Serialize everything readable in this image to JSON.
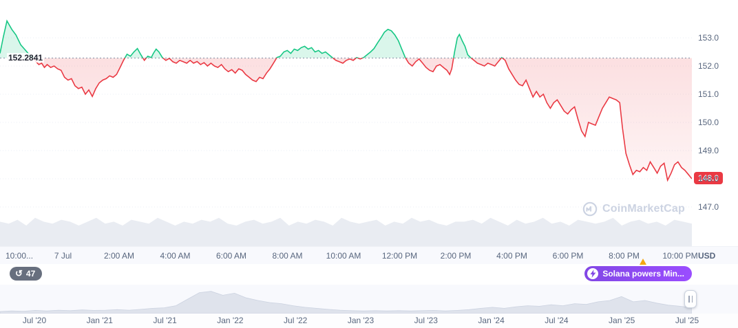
{
  "colors": {
    "green": "#16c784",
    "red": "#ea3943",
    "purple": "#8247e5",
    "axis_text": "#58667e",
    "volume_gray": "#e9ecf2",
    "navigator_fill": "#dfe3ec"
  },
  "chart_data": {
    "type": "line",
    "title": "",
    "ylabel": "USD",
    "y_ticks": [
      "153.0",
      "152.0",
      "151.0",
      "150.0",
      "149.0",
      "148.0",
      "147.0"
    ],
    "ylim": [
      146.8,
      154.2
    ],
    "grid": "horizontal-dotted",
    "legend": "none",
    "baseline_value": 152.2841,
    "baseline_label": "152.2841",
    "last_price_value": 148.0,
    "last_price_label": "148.0",
    "line_color_above": "#16c784",
    "line_color_below": "#ea3943",
    "x_ticks": [
      "10:00...",
      "7 Jul",
      "2:00 AM",
      "4:00 AM",
      "6:00 AM",
      "8:00 AM",
      "10:00 AM",
      "12:00 PM",
      "2:00 PM",
      "4:00 PM",
      "6:00 PM",
      "8:00 PM",
      "10:00 PM"
    ],
    "points": [
      [
        0,
        152.45
      ],
      [
        5,
        153.05
      ],
      [
        10,
        153.6
      ],
      [
        17,
        153.3
      ],
      [
        23,
        153.1
      ],
      [
        30,
        152.75
      ],
      [
        37,
        152.55
      ],
      [
        44,
        152.35
      ],
      [
        48,
        152.3
      ],
      [
        52,
        152.15
      ],
      [
        56,
        152.05
      ],
      [
        60,
        152.1
      ],
      [
        64,
        151.95
      ],
      [
        68,
        152.05
      ],
      [
        73,
        151.95
      ],
      [
        78,
        152.0
      ],
      [
        83,
        151.9
      ],
      [
        88,
        151.85
      ],
      [
        93,
        151.6
      ],
      [
        98,
        151.5
      ],
      [
        103,
        151.55
      ],
      [
        108,
        151.3
      ],
      [
        113,
        151.2
      ],
      [
        118,
        151.25
      ],
      [
        123,
        151.0
      ],
      [
        128,
        151.15
      ],
      [
        133,
        150.92
      ],
      [
        138,
        151.2
      ],
      [
        143,
        151.4
      ],
      [
        148,
        151.5
      ],
      [
        153,
        151.55
      ],
      [
        158,
        151.65
      ],
      [
        163,
        151.6
      ],
      [
        168,
        151.7
      ],
      [
        173,
        151.95
      ],
      [
        178,
        152.2
      ],
      [
        183,
        152.42
      ],
      [
        188,
        152.35
      ],
      [
        193,
        152.5
      ],
      [
        198,
        152.62
      ],
      [
        203,
        152.4
      ],
      [
        208,
        152.2
      ],
      [
        213,
        152.35
      ],
      [
        218,
        152.3
      ],
      [
        221,
        152.45
      ],
      [
        225,
        152.6
      ],
      [
        229,
        152.5
      ],
      [
        234,
        152.3
      ],
      [
        239,
        152.2
      ],
      [
        244,
        152.27
      ],
      [
        249,
        152.15
      ],
      [
        254,
        152.1
      ],
      [
        259,
        152.2
      ],
      [
        264,
        152.15
      ],
      [
        269,
        152.1
      ],
      [
        274,
        152.2
      ],
      [
        279,
        152.1
      ],
      [
        284,
        152.16
      ],
      [
        289,
        152.05
      ],
      [
        294,
        152.12
      ],
      [
        299,
        152.0
      ],
      [
        304,
        152.1
      ],
      [
        309,
        152.0
      ],
      [
        314,
        151.95
      ],
      [
        319,
        152.05
      ],
      [
        324,
        151.9
      ],
      [
        329,
        151.8
      ],
      [
        334,
        151.87
      ],
      [
        339,
        151.75
      ],
      [
        344,
        151.9
      ],
      [
        349,
        151.85
      ],
      [
        354,
        151.7
      ],
      [
        359,
        151.6
      ],
      [
        364,
        151.5
      ],
      [
        369,
        151.45
      ],
      [
        374,
        151.6
      ],
      [
        379,
        151.55
      ],
      [
        384,
        151.75
      ],
      [
        389,
        151.9
      ],
      [
        394,
        152.1
      ],
      [
        399,
        152.3
      ],
      [
        404,
        152.35
      ],
      [
        409,
        152.5
      ],
      [
        414,
        152.55
      ],
      [
        419,
        152.45
      ],
      [
        424,
        152.6
      ],
      [
        429,
        152.55
      ],
      [
        434,
        152.65
      ],
      [
        439,
        152.7
      ],
      [
        444,
        152.6
      ],
      [
        449,
        152.65
      ],
      [
        454,
        152.5
      ],
      [
        459,
        152.55
      ],
      [
        464,
        152.45
      ],
      [
        469,
        152.5
      ],
      [
        474,
        152.4
      ],
      [
        479,
        152.3
      ],
      [
        484,
        152.2
      ],
      [
        489,
        152.15
      ],
      [
        494,
        152.1
      ],
      [
        499,
        152.2
      ],
      [
        504,
        152.25
      ],
      [
        509,
        152.2
      ],
      [
        514,
        152.3
      ],
      [
        519,
        152.25
      ],
      [
        524,
        152.3
      ],
      [
        529,
        152.4
      ],
      [
        534,
        152.5
      ],
      [
        539,
        152.62
      ],
      [
        544,
        152.82
      ],
      [
        549,
        153.0
      ],
      [
        554,
        153.2
      ],
      [
        559,
        153.3
      ],
      [
        564,
        153.25
      ],
      [
        569,
        153.1
      ],
      [
        574,
        152.9
      ],
      [
        579,
        152.6
      ],
      [
        584,
        152.3
      ],
      [
        589,
        152.1
      ],
      [
        594,
        152.0
      ],
      [
        599,
        152.15
      ],
      [
        604,
        152.25
      ],
      [
        609,
        152.1
      ],
      [
        614,
        151.95
      ],
      [
        619,
        151.85
      ],
      [
        624,
        151.8
      ],
      [
        629,
        152.0
      ],
      [
        634,
        152.05
      ],
      [
        639,
        151.95
      ],
      [
        644,
        151.85
      ],
      [
        648,
        151.7
      ],
      [
        651,
        151.9
      ],
      [
        655,
        152.5
      ],
      [
        659,
        153.0
      ],
      [
        662,
        153.12
      ],
      [
        666,
        152.9
      ],
      [
        670,
        152.7
      ],
      [
        674,
        152.4
      ],
      [
        678,
        152.3
      ],
      [
        683,
        152.2
      ],
      [
        688,
        152.1
      ],
      [
        693,
        152.05
      ],
      [
        698,
        152.0
      ],
      [
        703,
        152.1
      ],
      [
        708,
        152.05
      ],
      [
        713,
        152.0
      ],
      [
        718,
        152.15
      ],
      [
        723,
        152.3
      ],
      [
        728,
        152.2
      ],
      [
        733,
        151.9
      ],
      [
        738,
        151.7
      ],
      [
        743,
        151.5
      ],
      [
        748,
        151.35
      ],
      [
        753,
        151.3
      ],
      [
        758,
        151.5
      ],
      [
        763,
        151.2
      ],
      [
        768,
        150.9
      ],
      [
        773,
        151.1
      ],
      [
        778,
        150.9
      ],
      [
        783,
        151.0
      ],
      [
        788,
        150.7
      ],
      [
        793,
        150.5
      ],
      [
        798,
        150.7
      ],
      [
        803,
        150.8
      ],
      [
        808,
        150.6
      ],
      [
        813,
        150.4
      ],
      [
        818,
        150.3
      ],
      [
        823,
        150.45
      ],
      [
        828,
        150.55
      ],
      [
        833,
        150.1
      ],
      [
        838,
        149.7
      ],
      [
        843,
        149.5
      ],
      [
        848,
        150.0
      ],
      [
        853,
        149.95
      ],
      [
        858,
        149.9
      ],
      [
        863,
        150.2
      ],
      [
        868,
        150.5
      ],
      [
        873,
        150.7
      ],
      [
        878,
        150.9
      ],
      [
        883,
        150.85
      ],
      [
        888,
        150.8
      ],
      [
        893,
        150.7
      ],
      [
        897,
        149.8
      ],
      [
        902,
        148.9
      ],
      [
        907,
        148.5
      ],
      [
        912,
        148.15
      ],
      [
        917,
        148.3
      ],
      [
        922,
        148.25
      ],
      [
        927,
        148.4
      ],
      [
        932,
        148.3
      ],
      [
        937,
        148.6
      ],
      [
        942,
        148.4
      ],
      [
        947,
        148.2
      ],
      [
        952,
        148.45
      ],
      [
        957,
        148.55
      ],
      [
        962,
        147.95
      ],
      [
        967,
        148.2
      ],
      [
        972,
        148.5
      ],
      [
        977,
        148.6
      ],
      [
        982,
        148.4
      ],
      [
        987,
        148.3
      ],
      [
        992,
        148.15
      ],
      [
        997,
        148.0
      ]
    ],
    "volume_profile": [
      0.6,
      0.55,
      0.65,
      0.5,
      0.7,
      0.6,
      0.55,
      0.65,
      0.6,
      0.5,
      0.6,
      0.7,
      0.55,
      0.6,
      0.5,
      0.65,
      0.6,
      0.55,
      0.7,
      0.6,
      0.5,
      0.6,
      0.55,
      0.65,
      0.6,
      0.7,
      0.55,
      0.5,
      0.6,
      0.65,
      0.55,
      0.6,
      0.7,
      0.5,
      0.6,
      0.55,
      0.65,
      0.6,
      0.5,
      0.7,
      0.6,
      0.55,
      0.6,
      0.65,
      0.5,
      0.6,
      0.55,
      0.7,
      0.6,
      0.65,
      0.55,
      0.5,
      0.6,
      0.6,
      0.65,
      0.55,
      0.7,
      0.6,
      0.5,
      0.65,
      0.55,
      0.6,
      0.7,
      0.55,
      0.6,
      0.5,
      0.65,
      0.6,
      0.55,
      0.6,
      0.7,
      0.5,
      0.6,
      0.65,
      0.55,
      0.6,
      0.5,
      0.65,
      0.6,
      0.55
    ]
  },
  "navigator": {
    "dates": [
      "Jul '20",
      "Jan '21",
      "Jul '21",
      "Jan '22",
      "Jul '22",
      "Jan '23",
      "Jul '23",
      "Jan '24",
      "Jul '24",
      "Jan '25",
      "Jul '25"
    ],
    "profile": [
      0.08,
      0.1,
      0.09,
      0.12,
      0.1,
      0.13,
      0.11,
      0.14,
      0.12,
      0.13,
      0.15,
      0.13,
      0.16,
      0.2,
      0.22,
      0.3,
      0.55,
      0.8,
      0.85,
      0.7,
      0.78,
      0.6,
      0.5,
      0.42,
      0.38,
      0.3,
      0.24,
      0.2,
      0.16,
      0.13,
      0.11,
      0.1,
      0.11,
      0.1,
      0.11,
      0.1,
      0.11,
      0.12,
      0.1,
      0.12,
      0.15,
      0.2,
      0.24,
      0.2,
      0.26,
      0.3,
      0.28,
      0.34,
      0.3,
      0.38,
      0.35,
      0.45,
      0.5,
      0.65,
      0.45,
      0.5,
      0.4,
      0.32,
      0.28,
      0.22
    ]
  },
  "axis": {
    "unit_label": "USD"
  },
  "badges": {
    "history_count": "47",
    "history_icon": "↺",
    "promo_label": "Solana powers Min..."
  },
  "watermark": {
    "label": "CoinMarketCap"
  }
}
